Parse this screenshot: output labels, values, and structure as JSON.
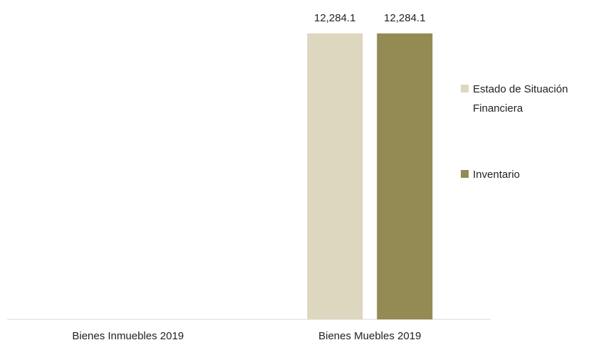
{
  "chart_data": {
    "type": "bar",
    "categories": [
      "Bienes Inmuebles 2019",
      "Bienes Muebles 2019"
    ],
    "series": [
      {
        "name_lines": [
          "Estado de Situación",
          "Financiera"
        ],
        "color": "#ddd7c0",
        "values": [
          null,
          12284.1
        ],
        "labels": [
          "",
          "12,284.1"
        ]
      },
      {
        "name_lines": [
          "Inventario"
        ],
        "color": "#948a54",
        "values": [
          null,
          12284.1
        ],
        "labels": [
          "",
          "12,284.1"
        ]
      }
    ],
    "ylim": [
      0,
      12284.1
    ],
    "grid": false,
    "y_axis_visible": false,
    "legend_position": "right",
    "axis_color": "#d9d9d9"
  }
}
